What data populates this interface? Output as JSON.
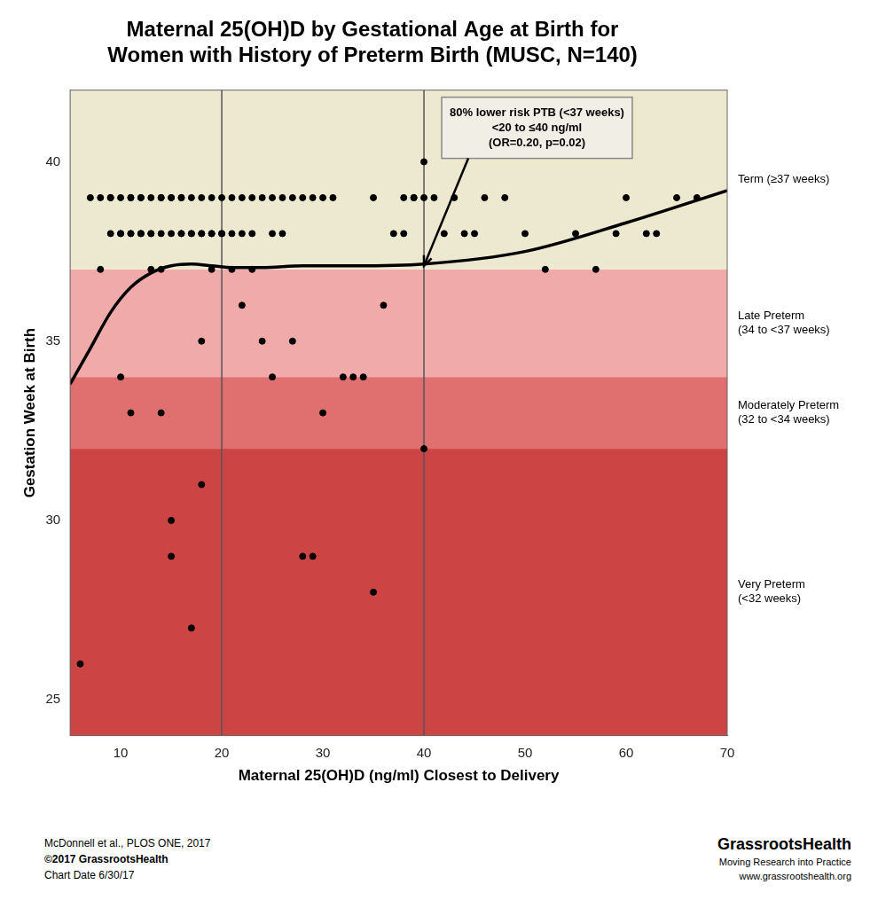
{
  "chart_data": {
    "type": "scatter",
    "title": [
      "Maternal 25(OH)D by Gestational Age at Birth for",
      "Women with History of Preterm Birth (MUSC, N=140)"
    ],
    "x_label": "Maternal 25(OH)D (ng/ml) Closest to Delivery",
    "y_label": "Gestation Week at Birth",
    "xlim": [
      5,
      70
    ],
    "ylim": [
      24,
      42
    ],
    "xticks": [
      10,
      20,
      30,
      40,
      50,
      60,
      70
    ],
    "yticks": [
      25,
      30,
      35,
      40
    ],
    "grid": false,
    "series": [
      {
        "type": "scatter",
        "color": "#000000",
        "x": [
          6,
          7,
          8,
          8,
          9,
          9,
          9,
          10,
          10,
          10,
          10,
          11,
          11,
          11,
          11,
          11,
          12,
          12,
          12,
          12,
          13,
          13,
          13,
          13,
          14,
          14,
          14,
          14,
          14,
          15,
          15,
          15,
          15,
          15,
          16,
          16,
          16,
          16,
          17,
          17,
          17,
          17,
          18,
          18,
          18,
          18,
          18,
          19,
          19,
          19,
          19,
          20,
          20,
          20,
          21,
          21,
          21,
          22,
          22,
          22,
          23,
          23,
          23,
          24,
          24,
          25,
          25,
          25,
          26,
          26,
          27,
          27,
          28,
          28,
          29,
          29,
          30,
          30,
          31,
          32,
          33,
          34,
          35,
          35,
          36,
          37,
          38,
          38,
          39,
          39,
          40,
          40,
          40,
          41,
          42,
          43,
          44,
          45,
          46,
          48,
          50,
          52,
          55,
          57,
          59,
          60,
          62,
          63,
          65,
          67
        ],
        "values": [
          26,
          39,
          39,
          37,
          39,
          39,
          38,
          39,
          38,
          38,
          34,
          39,
          39,
          38,
          38,
          33,
          39,
          39,
          38,
          38,
          39,
          38,
          38,
          37,
          39,
          39,
          38,
          37,
          33,
          39,
          39,
          38,
          30,
          29,
          39,
          39,
          38,
          38,
          39,
          38,
          38,
          27,
          39,
          38,
          38,
          35,
          31,
          39,
          38,
          38,
          37,
          39,
          38,
          38,
          39,
          38,
          37,
          39,
          38,
          36,
          39,
          38,
          37,
          39,
          35,
          39,
          38,
          34,
          39,
          38,
          39,
          35,
          39,
          29,
          39,
          29,
          39,
          33,
          39,
          34,
          34,
          34,
          39,
          28,
          36,
          38,
          39,
          38,
          39,
          39,
          40,
          39,
          32,
          39,
          38,
          39,
          38,
          38,
          39,
          39,
          38,
          37,
          38,
          37,
          38,
          39,
          38,
          38,
          39,
          39
        ]
      },
      {
        "type": "line",
        "color": "#000000",
        "x": [
          5,
          7,
          9,
          11,
          13,
          15,
          17,
          19,
          21,
          24,
          28,
          33,
          40,
          50,
          60,
          70
        ],
        "values": [
          33.8,
          34.8,
          35.8,
          36.5,
          36.9,
          37.1,
          37.15,
          37.1,
          37.05,
          37.05,
          37.1,
          37.1,
          37.15,
          37.5,
          38.3,
          39.2
        ]
      }
    ],
    "reference_lines": [
      {
        "x": 20,
        "color": "#555555"
      },
      {
        "x": 40,
        "color": "#555555"
      }
    ],
    "bands": [
      {
        "from": 24,
        "to": 32,
        "color": "#CC4444",
        "label": "Very Preterm\n(<32 weeks)"
      },
      {
        "from": 32,
        "to": 34,
        "color": "#E07070",
        "label": "Moderately Preterm\n(32 to <34 weeks)"
      },
      {
        "from": 34,
        "to": 37,
        "color": "#F0AAAA",
        "label": "Late Preterm\n(34 to <37 weeks)"
      },
      {
        "from": 37,
        "to": 42,
        "color": "#EDE8D0",
        "label": "Term (≥37 weeks)"
      }
    ],
    "annotation": {
      "text": [
        "80% lower risk PTB (<37 weeks)",
        "<20 to ≤40 ng/ml",
        "(OR=0.20, p=0.02)"
      ],
      "arrow_x": 40,
      "arrow_y": 37.1
    },
    "footer_left": [
      "McDonnell et al., PLOS ONE, 2017",
      "©2017 GrassrootsHealth",
      "Chart Date 6/30/17"
    ],
    "footer_right": [
      "GrassrootsHealth",
      "Moving Research into Practice",
      "www.grassrootshealth.org"
    ]
  }
}
